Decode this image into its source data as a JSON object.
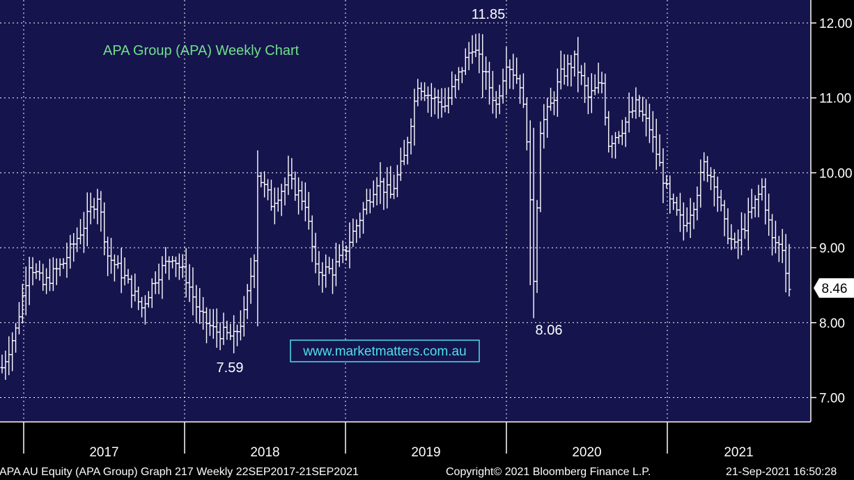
{
  "chart_data": {
    "type": "bar",
    "subtype": "ohlc-weekly",
    "title": "APA Group (APA) Weekly Chart",
    "watermark": "www.marketmatters.com.au",
    "ylim": [
      6.6,
      12.2
    ],
    "y_ticks": [
      {
        "value": 7,
        "label": "7.00"
      },
      {
        "value": 8,
        "label": "8.00"
      },
      {
        "value": 9,
        "label": "9.00"
      },
      {
        "value": 10,
        "label": "10.00"
      },
      {
        "value": 11,
        "label": "11.00"
      },
      {
        "value": 12,
        "label": "12.00"
      }
    ],
    "x_years": [
      "2017",
      "2018",
      "2019",
      "2020",
      "2021"
    ],
    "grid": true,
    "last_price": {
      "value": 8.46,
      "label": "8.46"
    },
    "annotations": [
      {
        "label": "11.85",
        "value": 11.85,
        "year": "2019"
      },
      {
        "label": "7.59",
        "value": 7.59,
        "year": "2018"
      },
      {
        "label": "8.06",
        "value": 8.06,
        "year": "2020"
      }
    ],
    "anchors": [
      [
        0,
        7.4
      ],
      [
        4,
        7.9
      ],
      [
        8,
        8.8
      ],
      [
        12,
        8.5
      ],
      [
        18,
        8.8
      ],
      [
        24,
        9.3
      ],
      [
        28,
        9.7
      ],
      [
        31,
        8.9
      ],
      [
        36,
        8.6
      ],
      [
        41,
        8.2
      ],
      [
        45,
        8.6
      ],
      [
        50,
        8.9
      ],
      [
        54,
        8.6
      ],
      [
        58,
        8.1
      ],
      [
        62,
        7.9
      ],
      [
        68,
        7.8
      ],
      [
        71,
        8.1
      ],
      [
        74,
        8.9
      ],
      [
        75,
        10.0
      ],
      [
        79,
        9.6
      ],
      [
        84,
        9.9
      ],
      [
        89,
        9.6
      ],
      [
        92,
        8.7
      ],
      [
        97,
        8.7
      ],
      [
        100,
        8.9
      ],
      [
        105,
        9.4
      ],
      [
        110,
        9.9
      ],
      [
        114,
        9.7
      ],
      [
        118,
        10.2
      ],
      [
        122,
        11.2
      ],
      [
        126,
        11.0
      ],
      [
        130,
        10.9
      ],
      [
        134,
        11.3
      ],
      [
        138,
        11.7
      ],
      [
        141,
        11.4
      ],
      [
        145,
        10.9
      ],
      [
        148,
        11.5
      ],
      [
        152,
        11.2
      ],
      [
        154,
        10.5
      ],
      [
        156,
        8.6
      ],
      [
        158,
        10.6
      ],
      [
        161,
        10.9
      ],
      [
        164,
        11.3
      ],
      [
        168,
        11.5
      ],
      [
        172,
        11.0
      ],
      [
        176,
        11.2
      ],
      [
        178,
        10.4
      ],
      [
        182,
        10.6
      ],
      [
        186,
        10.9
      ],
      [
        190,
        10.6
      ],
      [
        193,
        10.1
      ],
      [
        196,
        9.6
      ],
      [
        200,
        9.3
      ],
      [
        203,
        9.6
      ],
      [
        206,
        10.1
      ],
      [
        209,
        9.9
      ],
      [
        212,
        9.3
      ],
      [
        215,
        9.0
      ],
      [
        219,
        9.4
      ],
      [
        223,
        9.8
      ],
      [
        226,
        9.1
      ],
      [
        229,
        9.0
      ],
      [
        231,
        8.46
      ]
    ]
  },
  "footer": {
    "left": "APA AU Equity (APA Group) Graph 217  Weekly 22SEP2017-21SEP2021",
    "center": "Copyright© 2021 Bloomberg Finance L.P.",
    "right": "21-Sep-2021 16:50:28"
  },
  "colors": {
    "plot_bg": "#16144d",
    "axis_bg": "#000000",
    "bars": "#ffffff",
    "title": "#6fe08a",
    "watermark": "#4fe0ea",
    "grid": "#ffffff"
  }
}
